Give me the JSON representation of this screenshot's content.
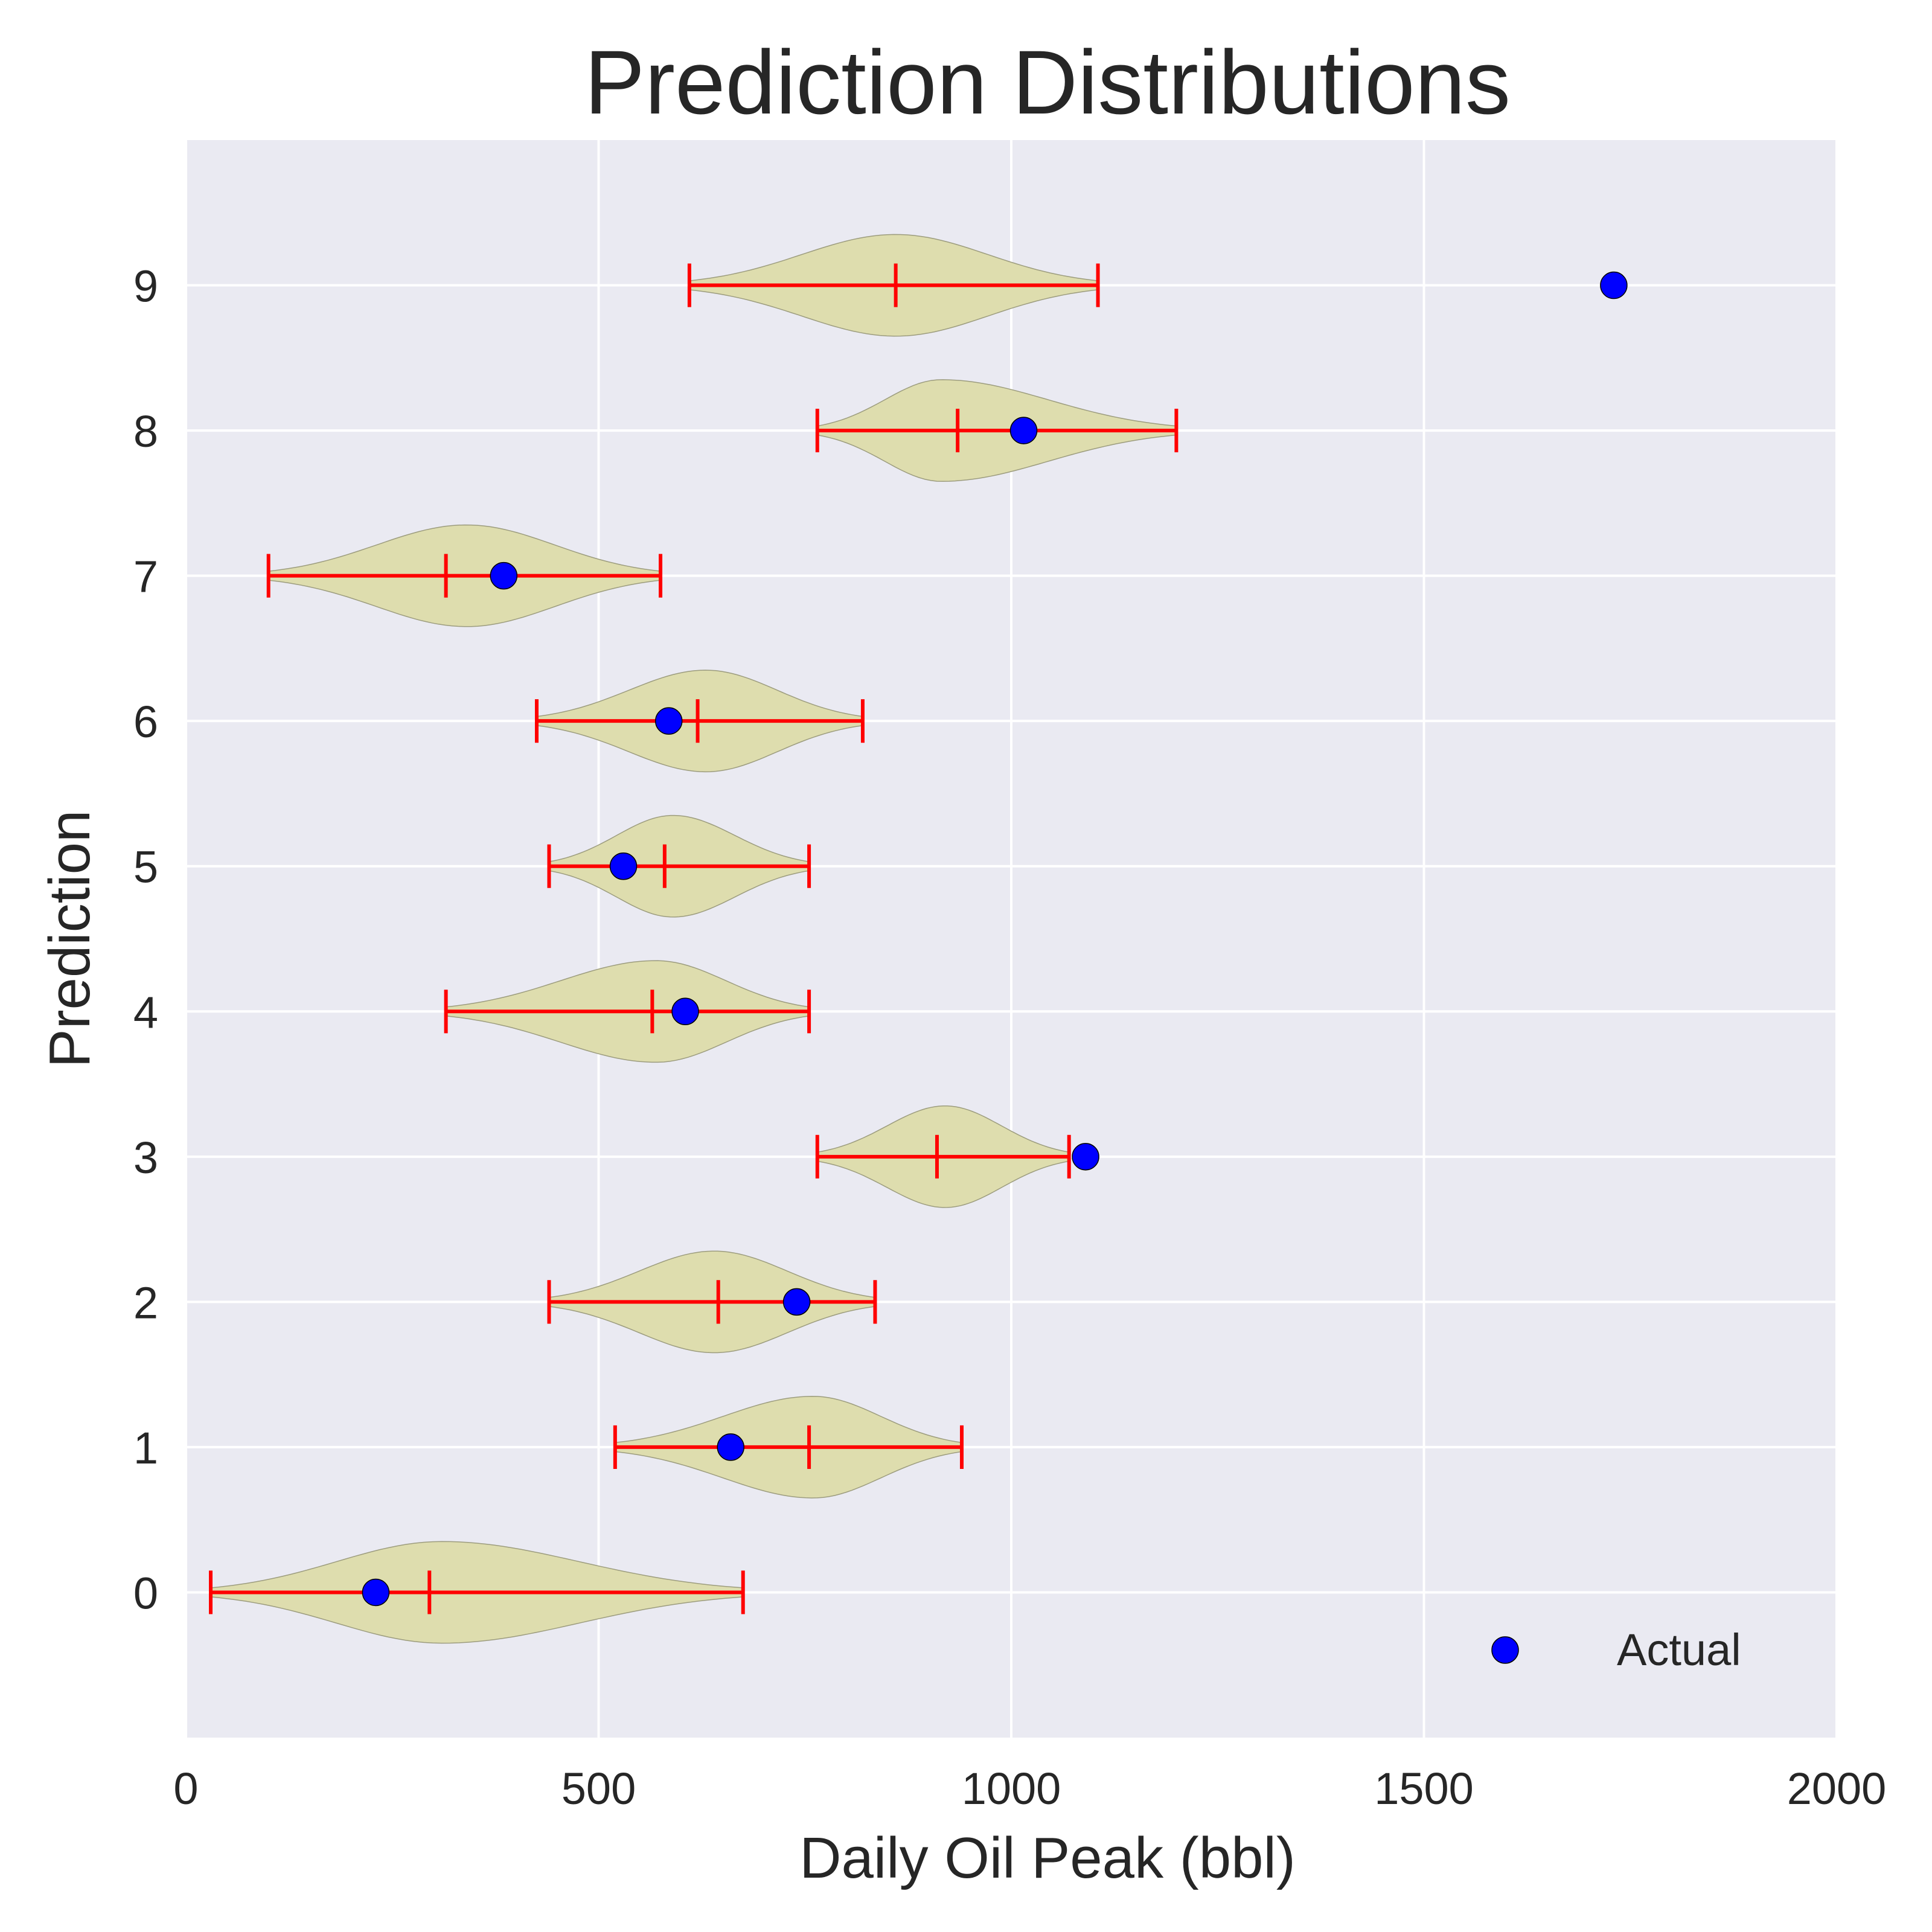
{
  "chart_data": {
    "type": "violin",
    "title": "Prediction Distributions",
    "xlabel": "Daily Oil Peak (bbl)",
    "ylabel": "Prediction",
    "xlim": [
      0,
      2000
    ],
    "ylim": [
      -1,
      10
    ],
    "xticks": [
      "0",
      "500",
      "1000",
      "1500",
      "2000"
    ],
    "yticks": [
      "0",
      "1",
      "2",
      "3",
      "4",
      "5",
      "6",
      "7",
      "8",
      "9"
    ],
    "grid": true,
    "legend": {
      "placement": "lower-right",
      "entries": [
        "Actual"
      ]
    },
    "colors": {
      "background": "#EAEAF2",
      "grid": "#FFFFFF",
      "violin_fill": "#DEDDAE",
      "violin_edge": "#9C9C7E",
      "whisker": "#FF0000",
      "actual_point": "#0000FF"
    },
    "violins": [
      {
        "position": 0,
        "min": 30,
        "max": 675,
        "median": 295,
        "mode": 310,
        "max_density": 1.0
      },
      {
        "position": 1,
        "min": 520,
        "max": 940,
        "median": 755,
        "mode": 760,
        "max_density": 1.0
      },
      {
        "position": 2,
        "min": 440,
        "max": 835,
        "median": 645,
        "mode": 640,
        "max_density": 1.0
      },
      {
        "position": 3,
        "min": 765,
        "max": 1070,
        "median": 910,
        "mode": 920,
        "max_density": 1.0
      },
      {
        "position": 4,
        "min": 315,
        "max": 755,
        "median": 565,
        "mode": 570,
        "max_density": 1.0
      },
      {
        "position": 5,
        "min": 440,
        "max": 755,
        "median": 580,
        "mode": 590,
        "max_density": 1.0
      },
      {
        "position": 6,
        "min": 425,
        "max": 820,
        "median": 620,
        "mode": 630,
        "max_density": 1.0
      },
      {
        "position": 7,
        "min": 100,
        "max": 575,
        "median": 315,
        "mode": 340,
        "max_density": 1.0
      },
      {
        "position": 8,
        "min": 765,
        "max": 1200,
        "median": 935,
        "mode": 915,
        "max_density": 1.0
      },
      {
        "position": 9,
        "min": 610,
        "max": 1105,
        "median": 860,
        "mode": 860,
        "max_density": 1.0
      }
    ],
    "series": [
      {
        "name": "Actual",
        "points": [
          {
            "x": 230,
            "y": 0
          },
          {
            "x": 660,
            "y": 1
          },
          {
            "x": 740,
            "y": 2
          },
          {
            "x": 1090,
            "y": 3
          },
          {
            "x": 605,
            "y": 4
          },
          {
            "x": 530,
            "y": 5
          },
          {
            "x": 585,
            "y": 6
          },
          {
            "x": 385,
            "y": 7
          },
          {
            "x": 1015,
            "y": 8
          },
          {
            "x": 1730,
            "y": 9
          }
        ]
      }
    ]
  }
}
